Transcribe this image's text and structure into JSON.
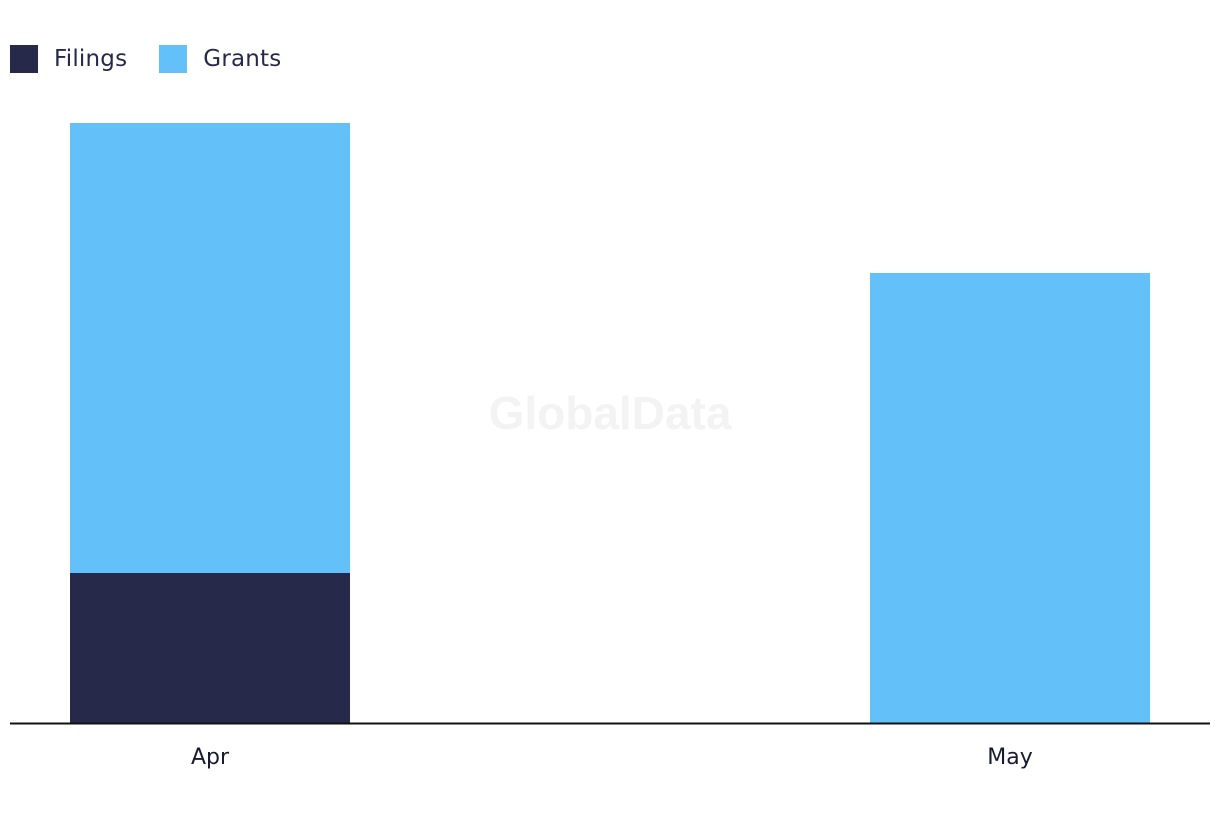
{
  "watermark": "GlobalData",
  "legend": {
    "items": [
      {
        "label": "Filings",
        "color": "#26294a"
      },
      {
        "label": "Grants",
        "color": "#63c0f8"
      }
    ]
  },
  "chart_data": {
    "type": "bar",
    "stacked": true,
    "categories": [
      "Apr",
      "May"
    ],
    "series": [
      {
        "name": "Filings",
        "color": "#26294a",
        "values": [
          1,
          0
        ]
      },
      {
        "name": "Grants",
        "color": "#63c0f8",
        "values": [
          3,
          3
        ]
      }
    ],
    "ylim": [
      0,
      4
    ],
    "grid": false,
    "legend_position": "top-left",
    "xlabel": "",
    "ylabel": ""
  }
}
